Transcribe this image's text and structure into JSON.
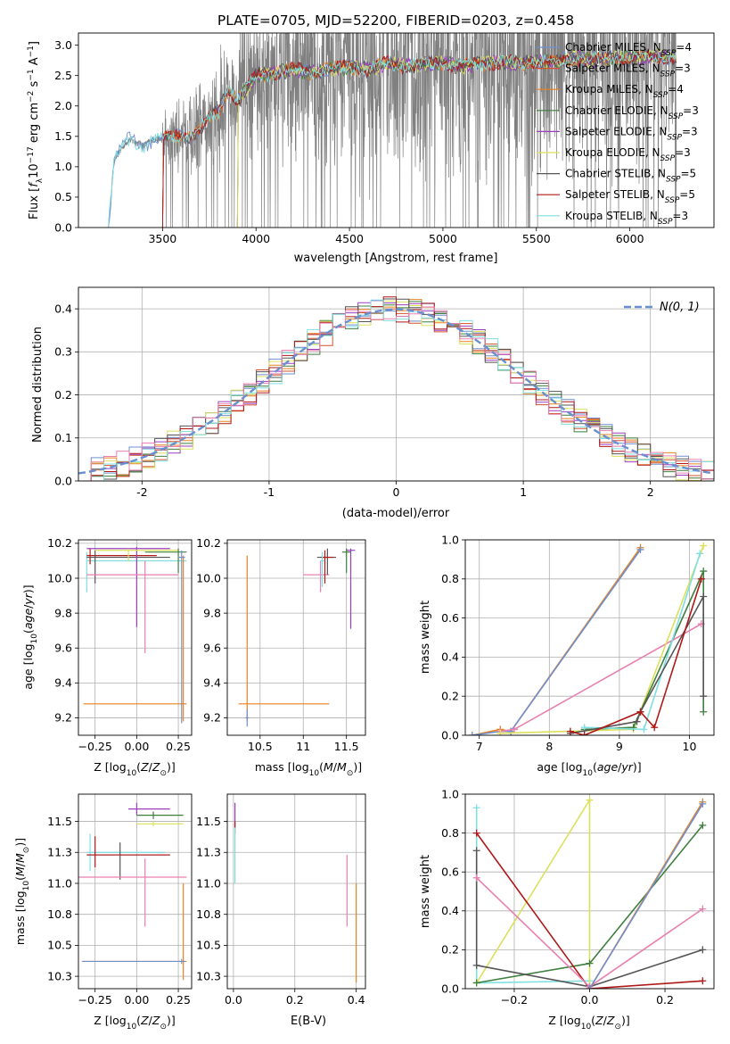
{
  "figure": {
    "title": "PLATE=0705, MJD=52200, FIBERID=0203, z=0.458"
  },
  "colors": {
    "chabrier_miles": "#6f8fcf",
    "salpeter_miles": "#d1532e",
    "kroupa_miles": "#e8821e",
    "chabrier_elodie": "#3f7f3f",
    "salpeter_elodie": "#9b3fbf",
    "kroupa_elodie": "#dbe05a",
    "chabrier_stelib": "#555555",
    "salpeter_stelib": "#b01818",
    "kroupa_stelib": "#7fdfe0",
    "pink": "#e880b0",
    "gauss": "#6a8fcf",
    "spectrum": "#808080"
  },
  "chart_data": [
    {
      "id": "spectrum",
      "type": "line",
      "title": "PLATE=0705, MJD=52200, FIBERID=0203, z=0.458",
      "xlabel": "wavelength [Angstrom, rest frame]",
      "ylabel": "Flux [f_λ 10^-17 erg cm^-2 s^-1 A^-1]",
      "xlim": [
        3050,
        6450
      ],
      "ylim": [
        0,
        3.2
      ],
      "xticks": [
        3500,
        4000,
        4500,
        5000,
        5500,
        6000
      ],
      "yticks": [
        0.0,
        0.5,
        1.0,
        1.5,
        2.0,
        2.5,
        3.0
      ],
      "grid": false,
      "legend_position": "top-right",
      "legend": [
        {
          "text": "Chabrier MILES, N",
          "sub": "SSP",
          "tail": "=4",
          "color_key": "chabrier_miles"
        },
        {
          "text": "Salpeter MILES, N",
          "sub": "SSP",
          "tail": "=3",
          "color_key": "salpeter_miles"
        },
        {
          "text": "Kroupa MILES, N",
          "sub": "SSP",
          "tail": "=4",
          "color_key": "kroupa_miles"
        },
        {
          "text": "Chabrier ELODIE, N",
          "sub": "SSP",
          "tail": "=3",
          "color_key": "chabrier_elodie"
        },
        {
          "text": "Salpeter ELODIE, N",
          "sub": "SSP",
          "tail": "=3",
          "color_key": "salpeter_elodie"
        },
        {
          "text": "Kroupa ELODIE, N",
          "sub": "SSP",
          "tail": "=3",
          "color_key": "kroupa_elodie"
        },
        {
          "text": "Chabrier STELIB, N",
          "sub": "SSP",
          "tail": "=5",
          "color_key": "chabrier_stelib"
        },
        {
          "text": "Salpeter STELIB, N",
          "sub": "SSP",
          "tail": "=5",
          "color_key": "salpeter_stelib"
        },
        {
          "text": "Kroupa STELIB, N",
          "sub": "SSP",
          "tail": "=3",
          "color_key": "kroupa_stelib"
        }
      ],
      "model_knots": {
        "x": [
          3210,
          3240,
          3280,
          3320,
          3360,
          3400,
          3450,
          3500,
          3550,
          3600,
          3650,
          3700,
          3750,
          3800,
          3850,
          3900,
          3950,
          4000,
          4100,
          4200,
          4300,
          4400,
          4500,
          4600,
          4700,
          4800,
          4900,
          5000,
          5100,
          5200,
          5300,
          5400,
          5500,
          5600,
          5700,
          5800,
          5900,
          6000,
          6100,
          6200,
          6250
        ],
        "y": [
          0.0,
          1.1,
          1.3,
          1.45,
          1.4,
          1.35,
          1.45,
          1.45,
          1.5,
          1.55,
          1.5,
          1.6,
          1.8,
          1.9,
          2.3,
          2.1,
          2.3,
          2.5,
          2.55,
          2.6,
          2.55,
          2.6,
          2.65,
          2.6,
          2.7,
          2.65,
          2.7,
          2.7,
          2.65,
          2.7,
          2.72,
          2.7,
          2.75,
          2.72,
          2.8,
          2.75,
          2.8,
          2.78,
          2.82,
          2.8,
          2.8
        ]
      },
      "observed_noise_start": 3500,
      "observed_x_range": [
        3210,
        6250
      ]
    },
    {
      "id": "residuals",
      "type": "line",
      "xlabel": "(data-model)/error",
      "ylabel": "Normed distribution",
      "xlim": [
        -2.5,
        2.5
      ],
      "ylim": [
        0,
        0.45
      ],
      "xticks": [
        -2,
        -1,
        0,
        1,
        2
      ],
      "yticks": [
        0.0,
        0.1,
        0.2,
        0.3,
        0.4
      ],
      "grid": true,
      "legend_position": "top-right",
      "gauss_label": "N(0, 1)",
      "hist_bin_width": 0.1
    },
    {
      "id": "age_vs_Z",
      "type": "scatter",
      "xlabel": "Z [log10(Z/Z⊙)]",
      "ylabel": "age [log10(age/yr)]",
      "xlim": [
        -0.35,
        0.33
      ],
      "ylim": [
        9.1,
        10.22
      ],
      "xticks": [
        -0.25,
        0.0,
        0.25
      ],
      "xtick_labels": [
        "−0.25",
        "0.00",
        "0.25"
      ],
      "yticks": [
        9.2,
        9.4,
        9.6,
        9.8,
        10.0,
        10.2
      ],
      "grid": true,
      "errorbars": [
        {
          "c": "kroupa_stelib",
          "x": -0.3,
          "xe": [
            0,
            0.6
          ],
          "y": 10.1,
          "ye": [
            0.18,
            0.05
          ]
        },
        {
          "c": "salpeter_stelib",
          "x": -0.28,
          "xe": [
            0.02,
            0.4
          ],
          "y": 10.13,
          "ye": [
            0.05,
            0.04
          ]
        },
        {
          "c": "chabrier_stelib",
          "x": -0.25,
          "xe": [
            0.05,
            0.45
          ],
          "y": 10.12,
          "ye": [
            0.15,
            0.04
          ]
        },
        {
          "c": "salpeter_elodie",
          "x": 0.0,
          "xe": [
            0.3,
            0.2
          ],
          "y": 10.17,
          "ye": [
            0.45,
            0.01
          ]
        },
        {
          "c": "kroupa_elodie",
          "x": -0.05,
          "xe": [
            0.2,
            0.3
          ],
          "y": 10.16,
          "ye": [
            0.06,
            0.01
          ]
        },
        {
          "c": "pink",
          "x": 0.05,
          "xe": [
            0.35,
            0.2
          ],
          "y": 10.02,
          "ye": [
            0.45,
            0.08
          ]
        },
        {
          "c": "chabrier_elodie",
          "x": 0.25,
          "xe": [
            0.2,
            0.05
          ],
          "y": 10.15,
          "ye": [
            0.12,
            0.02
          ]
        },
        {
          "c": "kroupa_miles",
          "x": 0.28,
          "xe": [
            0.6,
            0.02
          ],
          "y": 9.28,
          "ye": [
            0.1,
            0.85
          ]
        },
        {
          "c": "chabrier_miles",
          "x": 0.27,
          "xe": [
            0.02,
            0.02
          ],
          "y": 10.12,
          "ye": [
            0.95,
            0.04
          ]
        }
      ]
    },
    {
      "id": "age_vs_mass",
      "type": "scatter",
      "xlabel": "mass [log10(M/M⊙)]",
      "xlim": [
        10.12,
        11.72
      ],
      "ylim": [
        9.1,
        10.22
      ],
      "xticks": [
        10.5,
        11.0,
        11.5
      ],
      "yticks": [
        9.2,
        9.4,
        9.6,
        9.8,
        10.0,
        10.2
      ],
      "grid": true,
      "errorbars": [
        {
          "c": "kroupa_miles",
          "x": 10.35,
          "xe": [
            0.1,
            0.95
          ],
          "y": 9.28,
          "ye": [
            0.1,
            0.85
          ]
        },
        {
          "c": "chabrier_miles",
          "x": 10.35,
          "xe": [
            0.02,
            0.02
          ],
          "y": 9.2,
          "ye": [
            0.05,
            0.05
          ]
        },
        {
          "c": "pink",
          "x": 11.2,
          "xe": [
            0.2,
            0.1
          ],
          "y": 10.02,
          "ye": [
            0.1,
            0.08
          ]
        },
        {
          "c": "chabrier_stelib",
          "x": 11.28,
          "xe": [
            0.12,
            0.1
          ],
          "y": 10.12,
          "ye": [
            0.1,
            0.05
          ]
        },
        {
          "c": "salpeter_stelib",
          "x": 11.25,
          "xe": [
            0.04,
            0.1
          ],
          "y": 10.12,
          "ye": [
            0.15,
            0.04
          ]
        },
        {
          "c": "salpeter_elodie",
          "x": 11.55,
          "xe": [
            0.05,
            0.05
          ],
          "y": 10.16,
          "ye": [
            0.45,
            0.01
          ]
        },
        {
          "c": "kroupa_stelib",
          "x": 11.22,
          "xe": [
            0.02,
            0.02
          ],
          "y": 10.1,
          "ye": [
            0.15,
            0.05
          ]
        },
        {
          "c": "chabrier_elodie",
          "x": 11.5,
          "xe": [
            0.05,
            0.05
          ],
          "y": 10.15,
          "ye": [
            0.12,
            0.02
          ]
        }
      ]
    },
    {
      "id": "weight_vs_age",
      "type": "line",
      "xlabel": "age [log10(age/yr)]",
      "ylabel": "mass weight",
      "xlim": [
        6.8,
        10.35
      ],
      "ylim": [
        0,
        1.0
      ],
      "xticks": [
        7,
        8,
        9,
        10
      ],
      "yticks": [
        0.0,
        0.2,
        0.4,
        0.6,
        0.8,
        1.0
      ],
      "grid": true,
      "series": [
        {
          "c": "kroupa_miles",
          "x": [
            6.9,
            7.3,
            7.45,
            9.3
          ],
          "y": [
            0.0,
            0.03,
            0.02,
            0.96
          ]
        },
        {
          "c": "chabrier_miles",
          "x": [
            6.9,
            7.3,
            7.45,
            9.3
          ],
          "y": [
            0.0,
            0.02,
            0.02,
            0.95
          ]
        },
        {
          "c": "pink",
          "x": [
            7.3,
            7.5,
            10.17
          ],
          "y": [
            0.02,
            0.03,
            0.57
          ]
        },
        {
          "c": "kroupa_elodie",
          "x": [
            7.3,
            9.2,
            10.2
          ],
          "y": [
            0.01,
            0.03,
            0.97
          ]
        },
        {
          "c": "chabrier_elodie",
          "x": [
            8.5,
            9.2,
            10.2,
            10.2
          ],
          "y": [
            0.03,
            0.04,
            0.84,
            0.12
          ]
        },
        {
          "c": "kroupa_stelib",
          "x": [
            8.5,
            9.35,
            10.15
          ],
          "y": [
            0.04,
            0.03,
            0.93
          ]
        },
        {
          "c": "chabrier_stelib",
          "x": [
            8.3,
            9.25,
            9.3,
            10.2,
            10.2
          ],
          "y": [
            0.01,
            0.07,
            0.12,
            0.71,
            0.2
          ]
        },
        {
          "c": "salpeter_stelib",
          "x": [
            8.3,
            8.5,
            9.3,
            9.5,
            10.17
          ],
          "y": [
            0.02,
            0.0,
            0.12,
            0.04,
            0.8
          ]
        }
      ]
    },
    {
      "id": "mass_vs_Z",
      "type": "scatter",
      "xlabel": "Z [log10(Z/Z⊙)]",
      "ylabel": "mass [log10(M/M⊙)]",
      "xlim": [
        -0.35,
        0.33
      ],
      "ylim": [
        10.15,
        11.72
      ],
      "xticks": [
        -0.25,
        0.0,
        0.25
      ],
      "xtick_labels": [
        "−0.25",
        "0.00",
        "0.25"
      ],
      "yticks": [
        10.25,
        10.5,
        10.75,
        11.0,
        11.25,
        11.5
      ],
      "grid": true,
      "errorbars": [
        {
          "c": "salpeter_elodie",
          "x": 0.0,
          "xe": [
            0.05,
            0.2
          ],
          "y": 11.6,
          "ye": [
            0.05,
            0.05
          ]
        },
        {
          "c": "chabrier_elodie",
          "x": 0.1,
          "xe": [
            0.1,
            0.18
          ],
          "y": 11.55,
          "ye": [
            0.03,
            0.03
          ]
        },
        {
          "c": "kroupa_elodie",
          "x": 0.1,
          "xe": [
            0.1,
            0.18
          ],
          "y": 11.48,
          "ye": [
            0.02,
            0.02
          ]
        },
        {
          "c": "kroupa_stelib",
          "x": -0.28,
          "xe": [
            0.02,
            0.45
          ],
          "y": 11.25,
          "ye": [
            0.15,
            0.15
          ]
        },
        {
          "c": "chabrier_stelib",
          "x": -0.1,
          "xe": [
            0.2,
            0.3
          ],
          "y": 11.23,
          "ye": [
            0.2,
            0.1
          ]
        },
        {
          "c": "salpeter_stelib",
          "x": -0.25,
          "xe": [
            0.05,
            0.45
          ],
          "y": 11.23,
          "ye": [
            0.1,
            0.15
          ]
        },
        {
          "c": "pink",
          "x": 0.05,
          "xe": [
            0.4,
            0.25
          ],
          "y": 11.05,
          "ye": [
            0.4,
            0.15
          ]
        },
        {
          "c": "kroupa_miles",
          "x": 0.28,
          "xe": [
            0.6,
            0.02
          ],
          "y": 10.37,
          "ye": [
            0.15,
            0.63
          ]
        },
        {
          "c": "chabrier_miles",
          "x": 0.27,
          "xe": [
            0.6,
            0.02
          ],
          "y": 10.37,
          "ye": [
            0.02,
            0.02
          ]
        }
      ]
    },
    {
      "id": "mass_vs_ebv",
      "type": "scatter",
      "xlabel": "E(B-V)",
      "xlim": [
        -0.02,
        0.43
      ],
      "ylim": [
        10.15,
        11.72
      ],
      "xticks": [
        0.0,
        0.2,
        0.4
      ],
      "xtick_labels": [
        "0.0",
        "0.2",
        "0.4"
      ],
      "yticks": [
        10.25,
        10.5,
        10.75,
        11.0,
        11.25,
        11.5
      ],
      "grid": true,
      "errorbars": [
        {
          "c": "salpeter_elodie",
          "x": 0.005,
          "xe": [
            0,
            0
          ],
          "y": 11.55,
          "ye": [
            0.1,
            0.1
          ]
        },
        {
          "c": "salpeter_stelib",
          "x": 0.005,
          "xe": [
            0,
            0
          ],
          "y": 11.45,
          "ye": [
            0.05,
            0.05
          ]
        },
        {
          "c": "kroupa_stelib",
          "x": 0.005,
          "xe": [
            0,
            0
          ],
          "y": 11.25,
          "ye": [
            0.25,
            0.2
          ]
        },
        {
          "c": "pink",
          "x": 0.37,
          "xe": [
            0,
            0
          ],
          "y": 10.95,
          "ye": [
            0.3,
            0.28
          ]
        },
        {
          "c": "kroupa_miles",
          "x": 0.4,
          "xe": [
            0,
            0
          ],
          "y": 10.62,
          "ye": [
            0.42,
            0.38
          ]
        }
      ]
    },
    {
      "id": "weight_vs_Z",
      "type": "line",
      "xlabel": "Z [log10(Z/Z⊙)]",
      "ylabel": "mass weight",
      "xlim": [
        -0.33,
        0.33
      ],
      "ylim": [
        0,
        1.0
      ],
      "xticks": [
        -0.2,
        0.0,
        0.2
      ],
      "xtick_labels": [
        "−0.2",
        "0.0",
        "0.2"
      ],
      "yticks": [
        0.0,
        0.2,
        0.4,
        0.6,
        0.8,
        1.0
      ],
      "grid": true,
      "series": [
        {
          "c": "kroupa_stelib",
          "x": [
            -0.3,
            -0.3,
            0.0
          ],
          "y": [
            0.93,
            0.03,
            0.04
          ]
        },
        {
          "c": "kroupa_elodie",
          "x": [
            -0.3,
            0.0,
            0.0
          ],
          "y": [
            0.03,
            0.97,
            0.0
          ]
        },
        {
          "c": "chabrier_elodie",
          "x": [
            -0.3,
            0.0,
            0.3
          ],
          "y": [
            0.03,
            0.13,
            0.84
          ]
        },
        {
          "c": "salpeter_stelib",
          "x": [
            -0.3,
            0.0,
            0.3
          ],
          "y": [
            0.8,
            0.0,
            0.04
          ]
        },
        {
          "c": "chabrier_stelib",
          "x": [
            -0.3,
            -0.3,
            0.0,
            0.3
          ],
          "y": [
            0.71,
            0.12,
            0.01,
            0.2
          ]
        },
        {
          "c": "pink",
          "x": [
            -0.3,
            0.0,
            0.3
          ],
          "y": [
            0.57,
            0.01,
            0.41
          ]
        },
        {
          "c": "kroupa_miles",
          "x": [
            0.0,
            0.3
          ],
          "y": [
            0.0,
            0.96
          ]
        },
        {
          "c": "chabrier_miles",
          "x": [
            0.0,
            0.3
          ],
          "y": [
            0.0,
            0.95
          ]
        }
      ]
    }
  ]
}
